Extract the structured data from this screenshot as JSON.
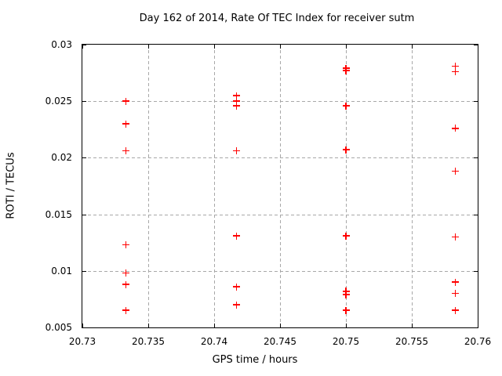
{
  "chart_data": {
    "type": "scatter",
    "title": "Day 162 of 2014, Rate Of TEC Index for receiver sutm",
    "xlabel": "GPS time / hours",
    "ylabel": "ROTI / TECUs",
    "xlim": [
      20.73,
      20.76
    ],
    "ylim": [
      0.005,
      0.03
    ],
    "x_ticks": [
      20.73,
      20.735,
      20.74,
      20.745,
      20.75,
      20.755,
      20.76
    ],
    "x_tick_labels": [
      "20.73",
      "20.735",
      "20.74",
      "20.745",
      "20.75",
      "20.755",
      "20.76"
    ],
    "y_ticks": [
      0.005,
      0.01,
      0.015,
      0.02,
      0.025,
      0.03
    ],
    "y_tick_labels": [
      "0.005",
      "0.01",
      "0.015",
      "0.02",
      "0.025",
      "0.03"
    ],
    "grid": true,
    "legend": "none",
    "marker": "plus",
    "colors": {
      "marker": "#ff0000",
      "grid": "#a8a8a8",
      "axis": "#000000",
      "background": "#ffffff"
    },
    "series": [
      {
        "name": "ROTI",
        "points": [
          [
            20.7333,
            0.025
          ],
          [
            20.7333,
            0.023
          ],
          [
            20.7333,
            0.0206
          ],
          [
            20.7333,
            0.0123
          ],
          [
            20.7333,
            0.0098
          ],
          [
            20.7333,
            0.0088
          ],
          [
            20.7333,
            0.0065
          ],
          [
            20.7417,
            0.0255
          ],
          [
            20.7417,
            0.025
          ],
          [
            20.7417,
            0.0246
          ],
          [
            20.7417,
            0.0206
          ],
          [
            20.7417,
            0.0131
          ],
          [
            20.7417,
            0.0086
          ],
          [
            20.7417,
            0.007
          ],
          [
            20.75,
            0.0279
          ],
          [
            20.75,
            0.0277
          ],
          [
            20.75,
            0.0246
          ],
          [
            20.75,
            0.0207
          ],
          [
            20.75,
            0.0131
          ],
          [
            20.75,
            0.0082
          ],
          [
            20.75,
            0.0079
          ],
          [
            20.75,
            0.0065
          ],
          [
            20.7583,
            0.0281
          ],
          [
            20.7583,
            0.0276
          ],
          [
            20.7583,
            0.0226
          ],
          [
            20.7583,
            0.0188
          ],
          [
            20.7583,
            0.013
          ],
          [
            20.7583,
            0.009
          ],
          [
            20.7583,
            0.008
          ],
          [
            20.7583,
            0.0065
          ]
        ]
      }
    ]
  }
}
